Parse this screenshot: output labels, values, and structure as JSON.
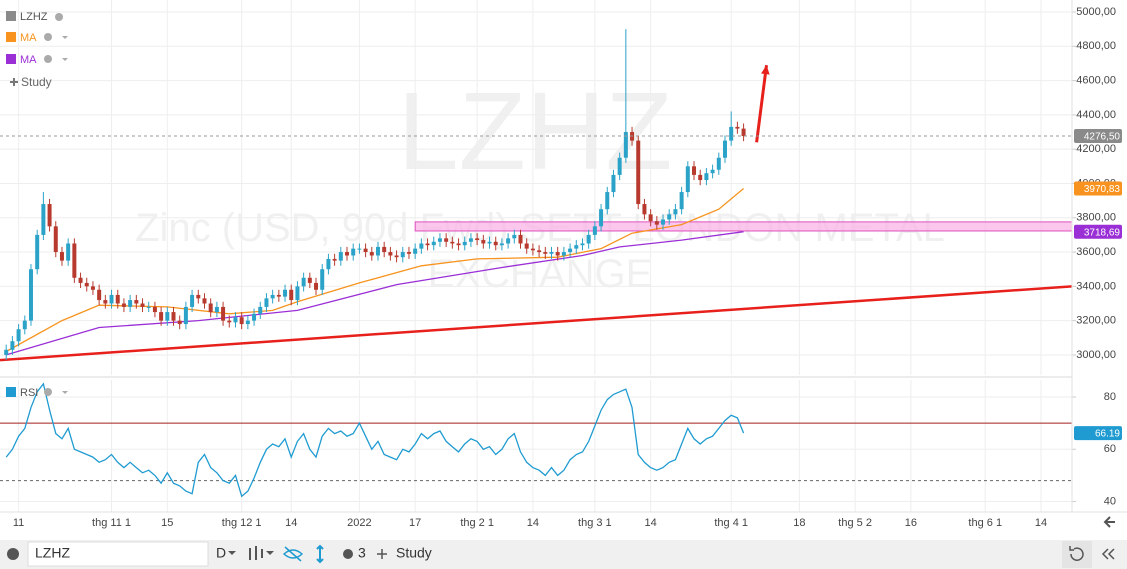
{
  "chart_data": [
    {
      "type": "candlestick",
      "name": "LZHZ",
      "watermark_subtitle": "Zinc (USD, 90d Fwd) SETT LONDON METAL EXCHANGE",
      "xlim": [
        -1,
        172
      ],
      "ylim": [
        2883,
        5070
      ],
      "grid": true,
      "up_color": "#2ba3c8",
      "down_color": "#b83a2e",
      "xticks": [
        {
          "value": 2,
          "label": "11"
        },
        {
          "value": 17,
          "label": "thg 11 1"
        },
        {
          "value": 26,
          "label": "15"
        },
        {
          "value": 38,
          "label": "thg 12 1"
        },
        {
          "value": 46,
          "label": "14"
        },
        {
          "value": 57,
          "label": "2022"
        },
        {
          "value": 66,
          "label": "17"
        },
        {
          "value": 76,
          "label": "thg 2 1"
        },
        {
          "value": 85,
          "label": "14"
        },
        {
          "value": 95,
          "label": "thg 3 1"
        },
        {
          "value": 104,
          "label": "14"
        },
        {
          "value": 117,
          "label": "thg 4 1"
        },
        {
          "value": 128,
          "label": "18"
        },
        {
          "value": 137,
          "label": "thg 5 2"
        },
        {
          "value": 146,
          "label": "16"
        },
        {
          "value": 158,
          "label": "thg 6 1"
        },
        {
          "value": 167,
          "label": "14"
        }
      ],
      "yticks": [
        {
          "value": 3000,
          "label": "3000,00"
        },
        {
          "value": 3200,
          "label": "3200,00"
        },
        {
          "value": 3400,
          "label": "3400,00"
        },
        {
          "value": 3600,
          "label": "3600,00"
        },
        {
          "value": 3800,
          "label": "3800,00"
        },
        {
          "value": 4000,
          "label": "4000,00"
        },
        {
          "value": 4200,
          "label": "4200,00"
        },
        {
          "value": 4400,
          "label": "4400,00"
        },
        {
          "value": 4600,
          "label": "4600,00"
        },
        {
          "value": 4800,
          "label": "4800,00"
        },
        {
          "value": 5000,
          "label": "5000,00"
        }
      ],
      "x": [
        0,
        1,
        2,
        3,
        4,
        5,
        6,
        7,
        8,
        9,
        10,
        11,
        12,
        13,
        14,
        15,
        16,
        17,
        18,
        19,
        20,
        21,
        22,
        23,
        24,
        25,
        26,
        27,
        28,
        29,
        30,
        31,
        32,
        33,
        34,
        35,
        36,
        37,
        38,
        39,
        40,
        41,
        42,
        43,
        44,
        45,
        46,
        47,
        48,
        49,
        50,
        51,
        52,
        53,
        54,
        55,
        56,
        57,
        58,
        59,
        60,
        61,
        62,
        63,
        64,
        65,
        66,
        67,
        68,
        69,
        70,
        71,
        72,
        73,
        74,
        75,
        76,
        77,
        78,
        79,
        80,
        81,
        82,
        83,
        84,
        85,
        86,
        87,
        88,
        89,
        90,
        91,
        92,
        93,
        94,
        95,
        96,
        97,
        98,
        99,
        100,
        101,
        102,
        103,
        104,
        105,
        106,
        107,
        108,
        109,
        110,
        111,
        112,
        113,
        114,
        115,
        116,
        117,
        118,
        119
      ],
      "open": [
        3000,
        3030,
        3080,
        3150,
        3200,
        3500,
        3700,
        3880,
        3750,
        3600,
        3550,
        3650,
        3450,
        3420,
        3400,
        3380,
        3320,
        3300,
        3350,
        3300,
        3280,
        3320,
        3300,
        3280,
        3280,
        3250,
        3200,
        3250,
        3200,
        3180,
        3280,
        3350,
        3330,
        3300,
        3250,
        3280,
        3200,
        3190,
        3220,
        3180,
        3200,
        3240,
        3280,
        3330,
        3350,
        3340,
        3380,
        3320,
        3400,
        3450,
        3420,
        3380,
        3500,
        3560,
        3550,
        3600,
        3580,
        3620,
        3620,
        3600,
        3580,
        3630,
        3600,
        3580,
        3570,
        3600,
        3590,
        3620,
        3650,
        3640,
        3660,
        3680,
        3660,
        3650,
        3640,
        3660,
        3680,
        3670,
        3650,
        3660,
        3640,
        3650,
        3680,
        3700,
        3650,
        3620,
        3610,
        3600,
        3590,
        3600,
        3580,
        3600,
        3620,
        3640,
        3650,
        3700,
        3750,
        3850,
        3950,
        4050,
        4150,
        4300,
        4250,
        3880,
        3820,
        3780,
        3760,
        3790,
        3820,
        3850,
        3950,
        4100,
        4050,
        4020,
        4060,
        4080,
        4150,
        4250,
        4330,
        4320
      ],
      "high": [
        3060,
        3110,
        3180,
        3230,
        3530,
        3730,
        3950,
        3910,
        3780,
        3630,
        3680,
        3680,
        3480,
        3450,
        3430,
        3410,
        3350,
        3380,
        3380,
        3330,
        3350,
        3350,
        3330,
        3310,
        3310,
        3280,
        3280,
        3280,
        3230,
        3310,
        3380,
        3380,
        3360,
        3330,
        3310,
        3310,
        3230,
        3250,
        3250,
        3230,
        3270,
        3310,
        3360,
        3380,
        3380,
        3410,
        3410,
        3430,
        3480,
        3480,
        3450,
        3530,
        3590,
        3590,
        3630,
        3630,
        3650,
        3650,
        3650,
        3630,
        3660,
        3660,
        3630,
        3610,
        3630,
        3630,
        3650,
        3680,
        3680,
        3690,
        3710,
        3710,
        3690,
        3680,
        3690,
        3710,
        3710,
        3700,
        3690,
        3690,
        3680,
        3710,
        3730,
        3730,
        3680,
        3650,
        3640,
        3630,
        3630,
        3630,
        3630,
        3650,
        3670,
        3680,
        3730,
        3780,
        3880,
        3980,
        4080,
        4180,
        4900,
        4330,
        4280,
        3910,
        3850,
        3810,
        3820,
        3850,
        3880,
        3980,
        4130,
        4130,
        4080,
        4090,
        4110,
        4180,
        4280,
        4420,
        4360,
        4350
      ],
      "low": [
        2970,
        3000,
        3050,
        3120,
        3170,
        3470,
        3670,
        3720,
        3570,
        3520,
        3520,
        3420,
        3390,
        3370,
        3350,
        3290,
        3270,
        3270,
        3270,
        3250,
        3250,
        3270,
        3250,
        3250,
        3220,
        3170,
        3170,
        3170,
        3150,
        3150,
        3250,
        3300,
        3270,
        3220,
        3220,
        3170,
        3160,
        3160,
        3150,
        3150,
        3170,
        3210,
        3250,
        3300,
        3310,
        3310,
        3290,
        3290,
        3370,
        3390,
        3350,
        3350,
        3470,
        3520,
        3520,
        3550,
        3550,
        3590,
        3570,
        3550,
        3550,
        3570,
        3550,
        3540,
        3540,
        3560,
        3560,
        3590,
        3610,
        3610,
        3630,
        3630,
        3620,
        3610,
        3610,
        3630,
        3640,
        3620,
        3620,
        3610,
        3610,
        3620,
        3650,
        3620,
        3590,
        3580,
        3570,
        3560,
        3560,
        3550,
        3550,
        3570,
        3590,
        3610,
        3620,
        3670,
        3720,
        3820,
        3920,
        4020,
        4120,
        4220,
        3850,
        3790,
        3750,
        3730,
        3730,
        3760,
        3790,
        3820,
        3920,
        4020,
        3990,
        3990,
        4030,
        4050,
        4120,
        4220,
        4290,
        4246.5
      ],
      "close": [
        3030,
        3080,
        3150,
        3200,
        3500,
        3700,
        3880,
        3750,
        3600,
        3550,
        3650,
        3450,
        3420,
        3400,
        3380,
        3320,
        3300,
        3350,
        3300,
        3280,
        3320,
        3300,
        3280,
        3280,
        3250,
        3200,
        3250,
        3200,
        3180,
        3280,
        3350,
        3330,
        3300,
        3250,
        3280,
        3200,
        3190,
        3220,
        3180,
        3200,
        3240,
        3280,
        3330,
        3350,
        3340,
        3380,
        3320,
        3400,
        3450,
        3420,
        3380,
        3500,
        3560,
        3550,
        3600,
        3580,
        3620,
        3620,
        3600,
        3580,
        3630,
        3600,
        3580,
        3570,
        3600,
        3590,
        3620,
        3650,
        3640,
        3660,
        3680,
        3660,
        3650,
        3640,
        3660,
        3680,
        3670,
        3650,
        3660,
        3640,
        3650,
        3680,
        3700,
        3650,
        3620,
        3610,
        3600,
        3590,
        3600,
        3580,
        3600,
        3620,
        3640,
        3650,
        3700,
        3750,
        3850,
        3950,
        4050,
        4150,
        4300,
        4250,
        3880,
        3820,
        3780,
        3760,
        3790,
        3820,
        3850,
        3950,
        4100,
        4050,
        4020,
        4060,
        4080,
        4150,
        4250,
        4330,
        4320,
        4276.5
      ],
      "series": [
        {
          "name": "MA",
          "color": "#f7931e",
          "x": [
            0,
            9,
            15,
            26,
            36,
            43,
            47,
            57,
            67,
            76,
            89,
            96,
            101,
            109,
            115,
            119
          ],
          "values": [
            3020,
            3200,
            3290,
            3280,
            3240,
            3260,
            3310,
            3420,
            3520,
            3560,
            3570,
            3620,
            3710,
            3760,
            3850,
            3970.83
          ]
        },
        {
          "name": "MA",
          "color": "#9b2fd6",
          "x": [
            0,
            15,
            31,
            47,
            63,
            80,
            93,
            99,
            109,
            119
          ],
          "values": [
            3000,
            3160,
            3200,
            3260,
            3410,
            3510,
            3580,
            3630,
            3670,
            3718.69
          ]
        }
      ],
      "trend_line": {
        "x": [
          -1,
          172
        ],
        "y": [
          2970,
          3400
        ],
        "color": "#e8201c"
      },
      "zone": {
        "x": [
          66,
          172
        ],
        "y": [
          3723,
          3776
        ],
        "color": "#f9b4e6",
        "border": "#e04fc0"
      },
      "arrow": {
        "x": [
          121.1,
          122.7
        ],
        "y": [
          4240,
          4690
        ],
        "color": "#e8201c"
      },
      "price_labels": [
        {
          "value": 4276.5,
          "label": "4276,50",
          "color": "#8a8a8a",
          "dashed": true
        },
        {
          "value": 3970.83,
          "label": "3970,83",
          "color": "#f7931e"
        },
        {
          "value": 3718.69,
          "label": "3718,69",
          "color": "#9b2fd6"
        }
      ]
    },
    {
      "type": "line",
      "xlim": [
        -1,
        172
      ],
      "ylim": [
        36,
        86.5
      ],
      "grid": true,
      "yticks": [
        40,
        60,
        80
      ],
      "series": [
        {
          "name": "RSI",
          "color": "#1f9bd1",
          "x": [
            0,
            1,
            2,
            3,
            4,
            5,
            6,
            7,
            8,
            9,
            10,
            11,
            12,
            13,
            14,
            15,
            16,
            17,
            18,
            19,
            20,
            21,
            22,
            23,
            24,
            25,
            26,
            27,
            28,
            29,
            30,
            31,
            32,
            33,
            34,
            35,
            36,
            37,
            38,
            39,
            40,
            41,
            42,
            43,
            44,
            45,
            46,
            47,
            48,
            49,
            50,
            51,
            52,
            53,
            54,
            55,
            56,
            57,
            58,
            59,
            60,
            61,
            62,
            63,
            64,
            65,
            66,
            67,
            68,
            69,
            70,
            71,
            72,
            73,
            74,
            75,
            76,
            77,
            78,
            79,
            80,
            81,
            82,
            83,
            84,
            85,
            86,
            87,
            88,
            89,
            90,
            91,
            92,
            93,
            94,
            95,
            96,
            97,
            98,
            99,
            100,
            101,
            102,
            103,
            104,
            105,
            106,
            107,
            108,
            109,
            110,
            111,
            112,
            113,
            114,
            115,
            116,
            117,
            118,
            119
          ],
          "values": [
            57,
            60,
            65,
            68,
            76,
            82,
            85,
            75,
            66,
            64,
            68,
            60,
            59,
            58,
            57,
            55,
            56,
            58,
            55,
            53,
            55,
            53,
            51,
            52,
            50,
            47,
            51,
            47,
            46,
            44,
            43,
            55,
            58,
            53,
            51,
            48,
            47,
            50,
            42,
            44,
            49,
            55,
            60,
            62,
            61,
            64,
            57,
            63,
            66,
            60,
            57,
            65,
            68,
            66,
            67,
            65,
            66,
            70,
            65,
            60,
            63,
            58,
            57,
            56,
            60,
            59,
            62,
            66,
            64,
            66,
            67,
            63,
            61,
            59,
            62,
            64,
            63,
            60,
            61,
            58,
            60,
            64,
            66,
            59,
            55,
            53,
            52,
            50,
            53,
            50,
            52,
            56,
            58,
            59,
            63,
            69,
            75,
            79,
            81,
            82,
            83,
            76,
            58,
            55,
            53,
            52,
            53,
            55,
            56,
            62,
            68,
            64,
            62,
            64,
            65,
            68,
            71,
            73,
            72,
            66.19
          ]
        }
      ],
      "reference_lines": [
        {
          "value": 70,
          "color": "#a31f1f"
        },
        {
          "value": 48,
          "color": "#666666",
          "dashed": true
        }
      ],
      "price_labels": [
        {
          "value": 66.19,
          "label": "66.19",
          "color": "#1f9bd1"
        }
      ]
    }
  ],
  "legend": {
    "study": "Study"
  },
  "toolbar": {
    "symbol": "LZHZ",
    "interval": "D",
    "indicator_count": 3,
    "study": "Study"
  }
}
